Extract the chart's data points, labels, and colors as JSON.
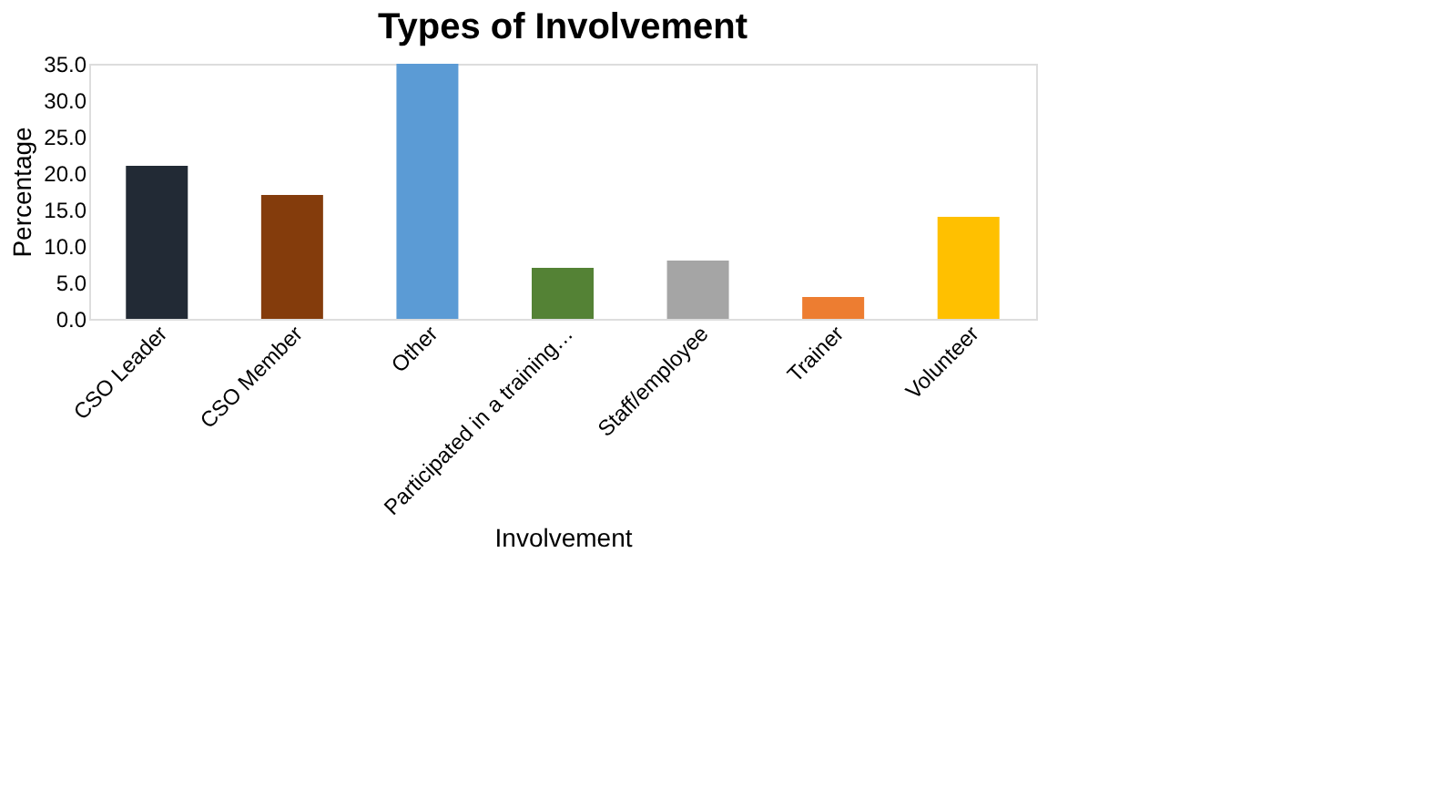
{
  "chart_data": {
    "type": "bar",
    "title": "Types of Involvement",
    "xlabel": "Involvement",
    "ylabel": "Percentage",
    "categories": [
      "CSO Leader",
      "CSO Member",
      "Other",
      "Participated in a training…",
      "Staff/employee",
      "Trainer",
      "Volunteer"
    ],
    "values": [
      21,
      17,
      35,
      7,
      8,
      3,
      14
    ],
    "colors": [
      "#222a35",
      "#843c0c",
      "#5b9bd5",
      "#548235",
      "#a5a5a5",
      "#ed7d31",
      "#ffc000"
    ],
    "ylim": [
      0,
      35
    ],
    "yticks": [
      {
        "value": 0,
        "label": "0.0"
      },
      {
        "value": 5,
        "label": "5.0"
      },
      {
        "value": 10,
        "label": "10.0"
      },
      {
        "value": 15,
        "label": "15.0"
      },
      {
        "value": 20,
        "label": "20.0"
      },
      {
        "value": 25,
        "label": "25.0"
      },
      {
        "value": 30,
        "label": "30.0"
      },
      {
        "value": 35,
        "label": "35.0"
      }
    ],
    "grid": false,
    "legend": false
  }
}
